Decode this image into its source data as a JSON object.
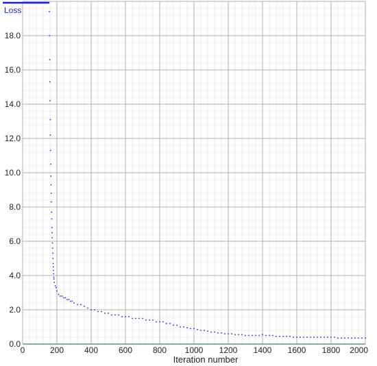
{
  "chart_data": {
    "type": "scatter",
    "title": "",
    "xlabel": "Iteration number",
    "ylabel": "",
    "xlim": [
      0,
      2000
    ],
    "ylim": [
      0,
      20
    ],
    "xticks": [
      0,
      200,
      400,
      600,
      800,
      1000,
      1200,
      1400,
      1600,
      1800,
      2000
    ],
    "xtick_labels": [
      "0",
      "200",
      "400",
      "600",
      "800",
      "1000",
      "1200",
      "1400",
      "1600",
      "1800",
      "2000"
    ],
    "yticks": [
      0,
      2,
      4,
      6,
      8,
      10,
      12,
      14,
      16,
      18
    ],
    "ytick_labels": [
      "0.0",
      "2.0",
      "4.0",
      "6.0",
      "8.0",
      "10.0",
      "12.0",
      "14.0",
      "16.0",
      "18.0"
    ],
    "grid": true,
    "legend": {
      "placement": "top-left",
      "entries": [
        "Loss"
      ]
    },
    "colors": {
      "series": "#1a1aff",
      "major_grid": "#b0b0b0",
      "minor_grid": "#e2e2e2",
      "axis": "#2e8b57"
    },
    "series": [
      {
        "name": "Loss",
        "x": [
          156,
          157,
          158,
          159,
          160,
          161,
          162,
          163,
          164,
          165,
          166,
          167,
          168,
          169,
          170,
          171,
          172,
          173,
          174,
          175,
          176,
          177,
          178,
          179,
          180,
          181,
          182,
          183,
          185,
          190,
          195,
          200,
          210,
          220,
          230,
          240,
          250,
          260,
          270,
          280,
          290,
          300,
          320,
          340,
          360,
          380,
          400,
          420,
          440,
          460,
          480,
          500,
          520,
          540,
          560,
          580,
          600,
          620,
          640,
          660,
          680,
          700,
          720,
          740,
          760,
          780,
          800,
          820,
          840,
          860,
          880,
          900,
          920,
          940,
          960,
          980,
          1000,
          1020,
          1040,
          1060,
          1080,
          1100,
          1120,
          1140,
          1160,
          1180,
          1200,
          1220,
          1240,
          1260,
          1280,
          1300,
          1320,
          1340,
          1360,
          1380,
          1400,
          1420,
          1440,
          1460,
          1480,
          1500,
          1520,
          1540,
          1560,
          1580,
          1600,
          1620,
          1640,
          1660,
          1680,
          1700,
          1720,
          1740,
          1760,
          1780,
          1800,
          1820,
          1840,
          1860,
          1880,
          1900,
          1920,
          1940,
          1960,
          1980,
          2000
        ],
        "y": [
          19.4,
          18.0,
          16.6,
          15.3,
          14.2,
          13.1,
          12.2,
          11.3,
          10.5,
          9.8,
          9.3,
          8.8,
          8.3,
          7.7,
          7.3,
          6.8,
          6.5,
          6.2,
          5.9,
          5.6,
          5.3,
          5.0,
          4.7,
          4.5,
          4.3,
          4.1,
          3.9,
          3.8,
          3.6,
          3.4,
          3.3,
          3.1,
          2.9,
          2.8,
          2.8,
          2.7,
          2.7,
          2.6,
          2.6,
          2.5,
          2.5,
          2.4,
          2.3,
          2.3,
          2.2,
          2.1,
          2.0,
          2.0,
          1.9,
          1.9,
          1.8,
          1.8,
          1.7,
          1.7,
          1.7,
          1.6,
          1.6,
          1.6,
          1.5,
          1.5,
          1.5,
          1.5,
          1.4,
          1.4,
          1.4,
          1.3,
          1.3,
          1.3,
          1.2,
          1.2,
          1.1,
          1.1,
          1.0,
          1.0,
          0.95,
          0.9,
          0.9,
          0.85,
          0.8,
          0.8,
          0.75,
          0.7,
          0.7,
          0.65,
          0.65,
          0.6,
          0.6,
          0.6,
          0.55,
          0.55,
          0.55,
          0.5,
          0.5,
          0.5,
          0.5,
          0.5,
          0.55,
          0.5,
          0.5,
          0.5,
          0.45,
          0.45,
          0.45,
          0.45,
          0.45,
          0.4,
          0.4,
          0.4,
          0.4,
          0.4,
          0.4,
          0.4,
          0.4,
          0.4,
          0.4,
          0.4,
          0.4,
          0.4,
          0.35,
          0.35,
          0.35,
          0.35,
          0.35,
          0.35,
          0.35,
          0.35,
          0.35
        ]
      }
    ]
  }
}
